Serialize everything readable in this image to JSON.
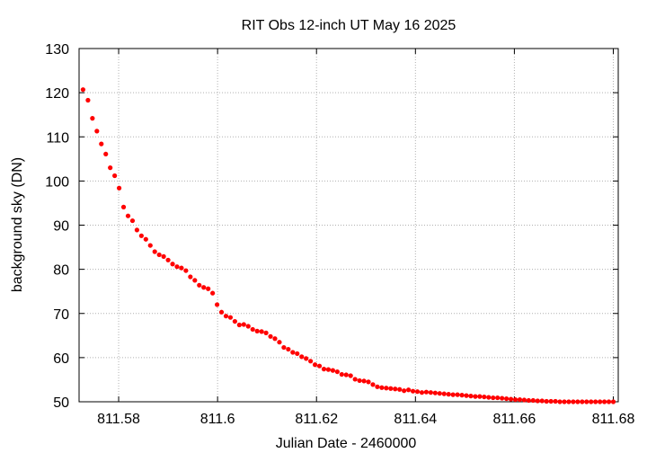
{
  "chart_data": {
    "type": "scatter",
    "title": "RIT Obs 12-inch UT May 16 2025",
    "xlabel": "Julian Date - 2460000",
    "ylabel": "background sky (DN)",
    "xlim": [
      811.572,
      811.681
    ],
    "ylim": [
      50,
      130
    ],
    "xticks": [
      811.58,
      811.6,
      811.62,
      811.64,
      811.66,
      811.68
    ],
    "xtick_labels": [
      "811.58",
      "811.6",
      "811.62",
      "811.64",
      "811.66",
      "811.68"
    ],
    "yticks": [
      50,
      60,
      70,
      80,
      90,
      100,
      110,
      120,
      130
    ],
    "ytick_labels": [
      "50",
      "60",
      "70",
      "80",
      "90",
      "100",
      "110",
      "120",
      "130"
    ],
    "grid": true,
    "legend": "none",
    "marker_color": "#ff0000",
    "series": [
      {
        "x": [
          811.5728,
          811.5738,
          811.5747,
          811.5756,
          811.5765,
          811.5774,
          811.5783,
          811.5792,
          811.5801,
          811.581,
          811.5819,
          811.5828,
          811.5837,
          811.5846,
          811.5855,
          811.5864,
          811.5873,
          811.5882,
          811.5891,
          811.59,
          811.5909,
          811.5918,
          811.5927,
          811.5936,
          811.5945,
          811.5954,
          811.5963,
          811.5972,
          811.5981,
          811.599,
          811.5999,
          811.6008,
          811.6017,
          811.6026,
          811.6035,
          811.6044,
          811.6053,
          811.6062,
          811.6071,
          811.608,
          811.6089,
          811.6098,
          811.6107,
          811.6116,
          811.6125,
          811.6134,
          811.6143,
          811.6152,
          811.6161,
          811.617,
          811.6179,
          811.6188,
          811.6197,
          811.6206,
          811.6215,
          811.6224,
          811.6233,
          811.6242,
          811.6251,
          811.626,
          811.6269,
          811.6278,
          811.6287,
          811.6296,
          811.6305,
          811.6314,
          811.6323,
          811.6332,
          811.6341,
          811.635,
          811.6359,
          811.6368,
          811.6377,
          811.6386,
          811.6395,
          811.6404,
          811.6413,
          811.6422,
          811.6431,
          811.644,
          811.6449,
          811.6458,
          811.6467,
          811.6476,
          811.6485,
          811.6494,
          811.6503,
          811.6512,
          811.6521,
          811.653,
          811.6539,
          811.6548,
          811.6557,
          811.6566,
          811.6575,
          811.6584,
          811.6593,
          811.6602,
          811.6611,
          811.662,
          811.6629,
          811.6638,
          811.6647,
          811.6656,
          811.6665,
          811.6674,
          811.6683,
          811.6692,
          811.6701,
          811.671,
          811.6719,
          811.6728,
          811.6737,
          811.6746,
          811.6755,
          811.6764,
          811.6773,
          811.6782,
          811.6791,
          811.68
        ],
        "y": [
          120.7,
          118.3,
          114.2,
          111.3,
          108.4,
          106.1,
          103.0,
          101.2,
          98.4,
          94.1,
          92.1,
          91.0,
          88.9,
          87.6,
          86.8,
          85.4,
          84.0,
          83.3,
          82.9,
          82.1,
          81.2,
          80.6,
          80.3,
          79.7,
          78.3,
          77.5,
          76.4,
          75.9,
          75.6,
          74.6,
          72.0,
          70.3,
          69.4,
          69.1,
          68.2,
          67.4,
          67.5,
          67.1,
          66.4,
          66.0,
          65.9,
          65.6,
          64.8,
          64.3,
          63.5,
          62.3,
          61.9,
          61.2,
          60.9,
          60.2,
          59.8,
          59.2,
          58.4,
          58.1,
          57.4,
          57.3,
          57.1,
          56.8,
          56.2,
          56.1,
          55.9,
          55.1,
          54.8,
          54.7,
          54.5,
          53.9,
          53.4,
          53.2,
          53.1,
          53.0,
          52.9,
          52.8,
          52.5,
          52.7,
          52.4,
          52.3,
          52.1,
          52.2,
          52.1,
          52.0,
          51.9,
          51.8,
          51.7,
          51.6,
          51.6,
          51.5,
          51.4,
          51.3,
          51.2,
          51.2,
          51.1,
          51.0,
          50.9,
          50.9,
          50.8,
          50.7,
          50.6,
          50.5,
          50.5,
          50.4,
          50.3,
          50.3,
          50.2,
          50.2,
          50.1,
          50.1,
          50.1,
          50.0,
          50.0,
          50.0,
          50.0,
          50.0,
          50.0,
          50.0,
          50.0,
          50.0,
          50.0,
          50.0,
          50.0,
          50.0
        ]
      }
    ]
  }
}
